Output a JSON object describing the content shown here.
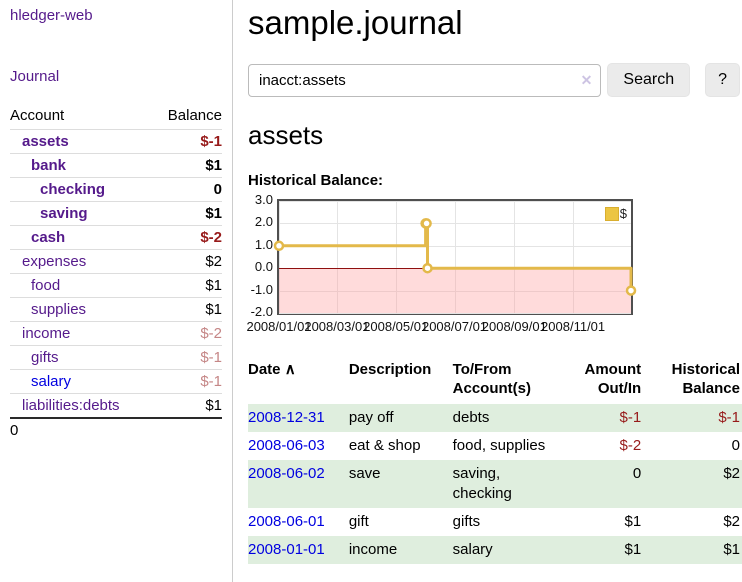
{
  "app": {
    "brand": "hledger-web"
  },
  "sidebar": {
    "journal_link": "Journal",
    "accounts": {
      "header": {
        "account": "Account",
        "balance": "Balance"
      },
      "rows": [
        {
          "name": "assets",
          "balance": "$-1"
        },
        {
          "name": "bank",
          "balance": "$1"
        },
        {
          "name": "checking",
          "balance": "0"
        },
        {
          "name": "saving",
          "balance": "$1"
        },
        {
          "name": "cash",
          "balance": "$-2"
        },
        {
          "name": "expenses",
          "balance": "$2"
        },
        {
          "name": "food",
          "balance": "$1"
        },
        {
          "name": "supplies",
          "balance": "$1"
        },
        {
          "name": "income",
          "balance": "$-2"
        },
        {
          "name": "gifts",
          "balance": "$-1"
        },
        {
          "name": "salary",
          "balance": "$-1"
        },
        {
          "name": "liabilities:debts",
          "balance": "$1"
        }
      ],
      "total": "0"
    }
  },
  "main": {
    "title": "sample.journal",
    "search": {
      "value": "inacct:assets",
      "clear_icon": "✕",
      "search_button": "Search",
      "help_button": "?"
    },
    "account_heading": "assets",
    "chart_title": "Historical Balance:"
  },
  "chart_data": {
    "type": "line",
    "step": true,
    "title": "Historical Balance",
    "series": [
      {
        "name": "$",
        "color": "#e3b94a",
        "points": [
          [
            "2008-01-01",
            1
          ],
          [
            "2008-06-01",
            2
          ],
          [
            "2008-06-02",
            2
          ],
          [
            "2008-06-03",
            0
          ],
          [
            "2008-12-31",
            -1
          ]
        ]
      }
    ],
    "x_start": "2008-01-01",
    "x_range_days": 365,
    "x_ticks": [
      "2008/01/01",
      "2008/03/01",
      "2008/05/01",
      "2008/07/01",
      "2008/09/01",
      "2008/11/01"
    ],
    "y_ticks": [
      "3.0",
      "2.0",
      "1.0",
      "0.0",
      "-1.0",
      "-2.0"
    ],
    "ylim": [
      -2,
      3
    ],
    "legend_position": "top-right",
    "negative_region_color": "rgba(255,160,160,0.38)",
    "zero_line_color": "#8f0f0f",
    "grid": true
  },
  "register": {
    "headers": {
      "date": "Date",
      "sort_icon": "∧",
      "description": "Description",
      "accounts": "To/From Account(s)",
      "amount": "Amount Out/In",
      "balance": "Historical Balance"
    },
    "rows": [
      {
        "date": "2008-12-31",
        "description": "pay off",
        "accounts": "debts",
        "amount": "$-1",
        "balance": "$-1"
      },
      {
        "date": "2008-06-03",
        "description": "eat & shop",
        "accounts": "food, supplies",
        "amount": "$-2",
        "balance": "0"
      },
      {
        "date": "2008-06-02",
        "description": "save",
        "accounts": "saving, checking",
        "amount": "0",
        "balance": "$2"
      },
      {
        "date": "2008-06-01",
        "description": "gift",
        "accounts": "gifts",
        "amount": "$1",
        "balance": "$2"
      },
      {
        "date": "2008-01-01",
        "description": "income",
        "accounts": "salary",
        "amount": "$1",
        "balance": "$1"
      }
    ]
  }
}
